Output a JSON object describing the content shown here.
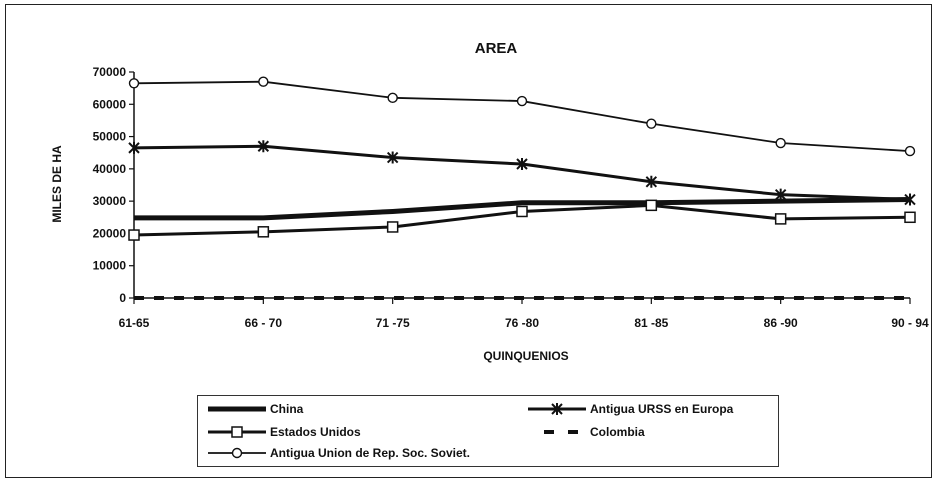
{
  "chart_data": {
    "type": "line",
    "title": "AREA",
    "xlabel": "QUINQUENIOS",
    "ylabel": "MILES DE HA",
    "categories": [
      "61-65",
      "66 - 70",
      "71 -75",
      "76 -80",
      "81 -85",
      "86 -90",
      "90 - 94"
    ],
    "ylim": [
      0,
      70000
    ],
    "yticks": [
      "0",
      "10000",
      "20000",
      "30000",
      "40000",
      "50000",
      "60000",
      "70000"
    ],
    "grid": false,
    "legend_position": "bottom",
    "series": [
      {
        "name": "China",
        "marker": "none",
        "style": "thick",
        "values": [
          24800,
          24800,
          26800,
          29500,
          29500,
          30000,
          30500
        ]
      },
      {
        "name": "Antigua URSS en Europa",
        "marker": "asterisk",
        "style": "solid",
        "values": [
          46500,
          47000,
          43500,
          41500,
          36000,
          32000,
          30500
        ]
      },
      {
        "name": "Estados Unidos",
        "marker": "square",
        "style": "solid",
        "values": [
          19500,
          20500,
          22000,
          26800,
          28700,
          24500,
          25000
        ]
      },
      {
        "name": "Colombia",
        "marker": "none",
        "style": "dashed",
        "values": [
          0,
          0,
          0,
          0,
          0,
          0,
          0
        ]
      },
      {
        "name": "Antigua Union de Rep. Soc. Soviet.",
        "marker": "circle",
        "style": "thin",
        "values": [
          66500,
          67000,
          62000,
          61000,
          54000,
          48000,
          45500
        ]
      }
    ]
  }
}
